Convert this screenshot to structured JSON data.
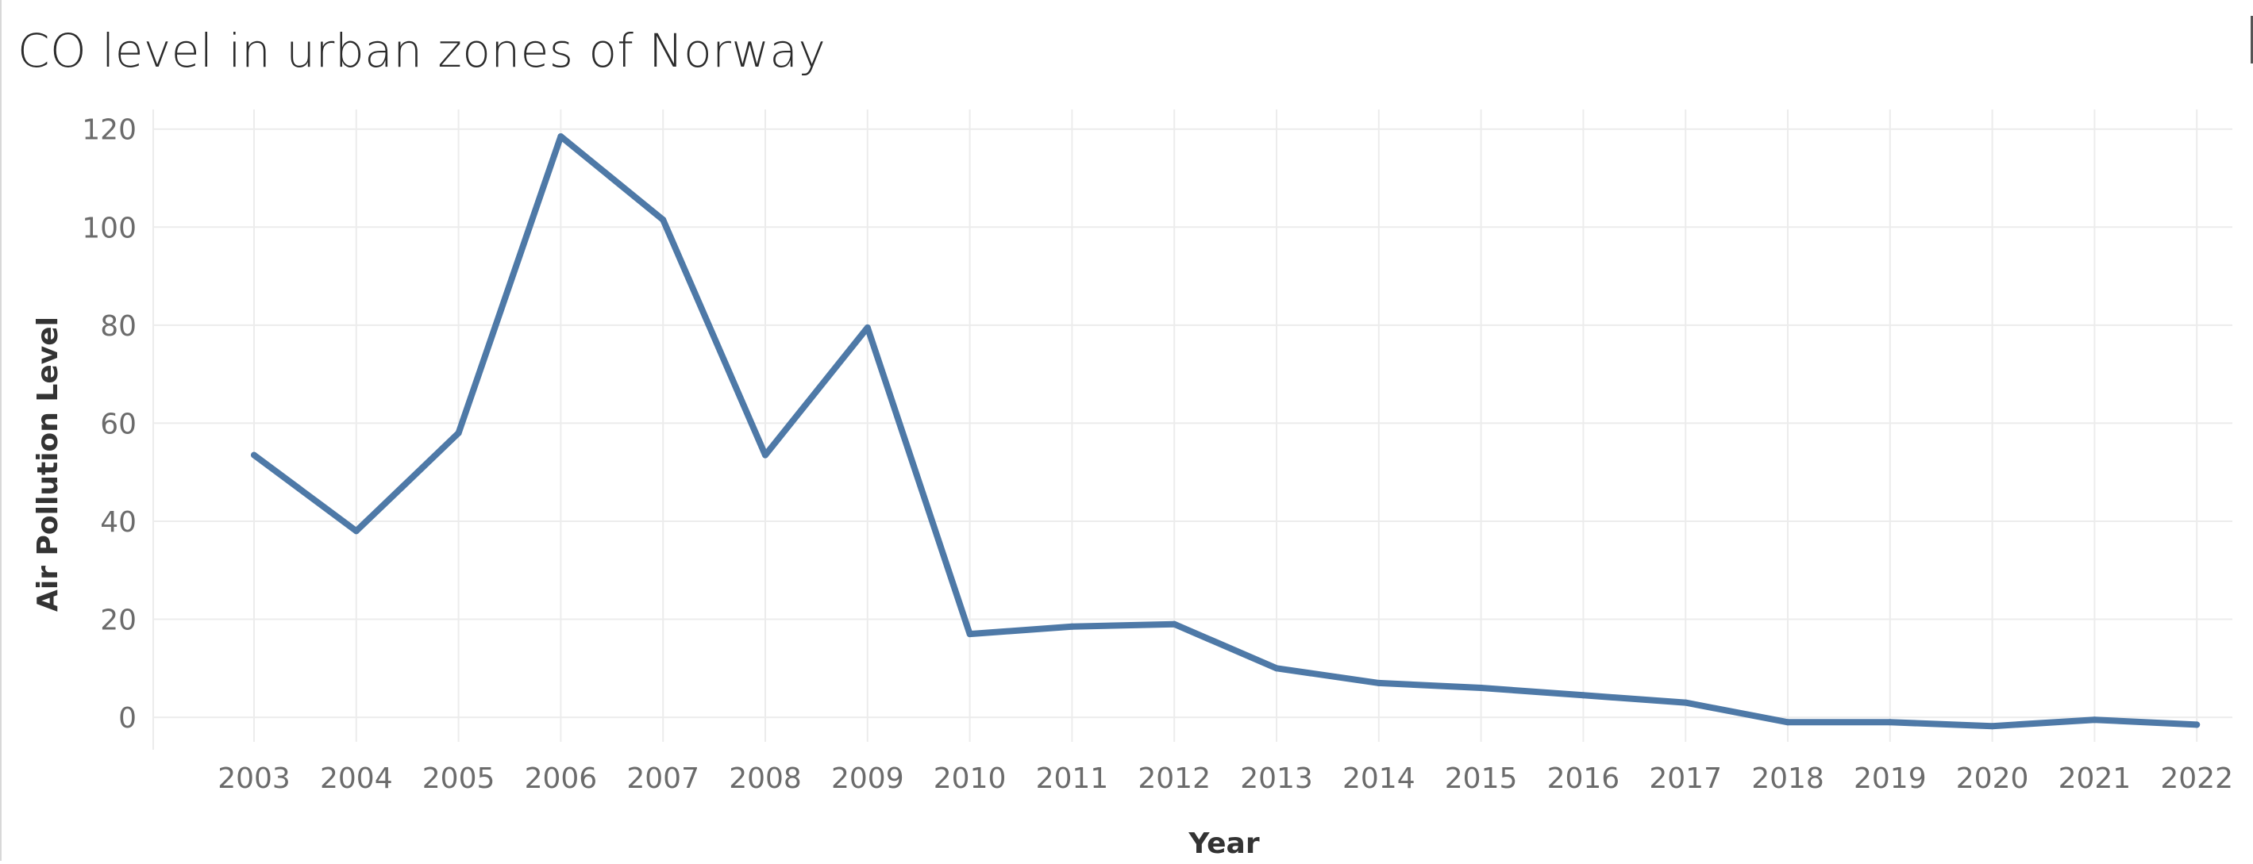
{
  "chart_data": {
    "type": "line",
    "title": "CO level in urban zones of Norway",
    "xlabel": "Year",
    "ylabel": "Air Pollution Level",
    "x": [
      "2003",
      "2004",
      "2005",
      "2006",
      "2007",
      "2008",
      "2009",
      "2010",
      "2011",
      "2012",
      "2013",
      "2014",
      "2015",
      "2016",
      "2017",
      "2018",
      "2019",
      "2020",
      "2021",
      "2022"
    ],
    "series": [
      {
        "values": [
          53.5,
          38,
          58,
          118.5,
          101.5,
          53.5,
          79.5,
          17,
          18.5,
          19,
          10,
          7,
          6,
          4.5,
          3,
          -1,
          -1,
          -1.8,
          -0.5,
          -1.5
        ]
      }
    ],
    "ylim": [
      -5,
      124
    ],
    "yticks": [
      0,
      20,
      40,
      60,
      80,
      100,
      120
    ],
    "grid": true,
    "legend": "none",
    "colors": {
      "line": "#4e79a7",
      "grid": "#ececec",
      "tick_label": "#6b6b6b",
      "axis_title": "#333333"
    }
  }
}
